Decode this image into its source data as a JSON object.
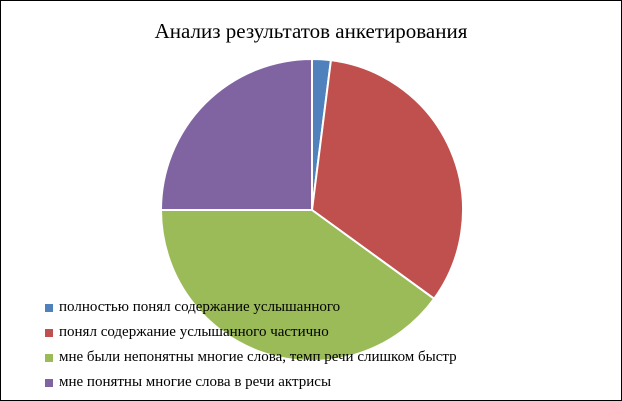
{
  "chart_data": {
    "type": "pie",
    "title": "Анализ результатов анкетирования",
    "categories": [
      "полностью понял содержание услышанного",
      "понял содержание услышанного частично",
      "мне были непонятны многие слова, темп речи слишком быстр",
      "мне понятны многие слова в речи актрисы"
    ],
    "values": [
      2,
      33,
      40,
      25
    ],
    "colors": [
      "#4F81BD",
      "#C0504D",
      "#9BBB59",
      "#8064A2"
    ],
    "start_angle_deg": 0,
    "direction": "clockwise",
    "legend_position": "bottom-left"
  }
}
